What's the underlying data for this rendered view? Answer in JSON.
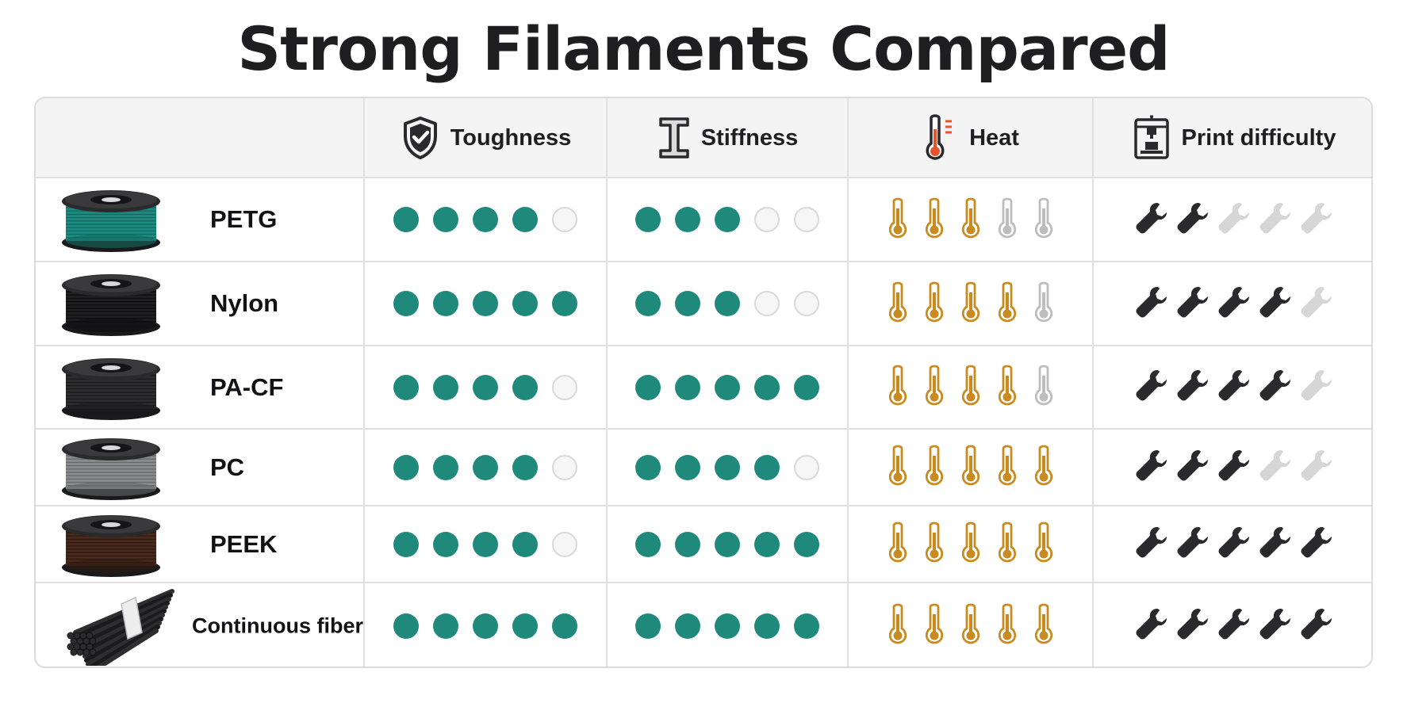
{
  "title": "Strong Filaments Compared",
  "columns": [
    {
      "key": "toughness",
      "label": "Toughness",
      "icon": "shield-check-icon"
    },
    {
      "key": "stiffness",
      "label": "Stiffness",
      "icon": "i-beam-icon"
    },
    {
      "key": "heat",
      "label": "Heat",
      "icon": "thermometer-icon"
    },
    {
      "key": "print_difficulty",
      "label": "Print difficulty",
      "icon": "3d-printer-icon"
    }
  ],
  "scale_max": 5,
  "colors": {
    "rating_on": "#1f8a7c",
    "rating_off": "#f6f6f6",
    "heat_on": "#c98a1f",
    "heat_off": "#bdbdbd",
    "wrench_on": "#2a2a2d",
    "wrench_off": "#d6d6d6"
  },
  "materials": [
    {
      "name": "PETG",
      "icon": "spool-teal-icon",
      "toughness": 4,
      "stiffness": 3,
      "heat": 3,
      "print_difficulty": 2
    },
    {
      "name": "Nylon",
      "icon": "spool-black-icon",
      "toughness": 5,
      "stiffness": 3,
      "heat": 4,
      "print_difficulty": 4
    },
    {
      "name": "PA-CF",
      "icon": "spool-carbon-icon",
      "toughness": 4,
      "stiffness": 5,
      "heat": 4,
      "print_difficulty": 4
    },
    {
      "name": "PC",
      "icon": "spool-gray-icon",
      "toughness": 4,
      "stiffness": 4,
      "heat": 5,
      "print_difficulty": 3
    },
    {
      "name": "PEEK",
      "icon": "spool-brown-icon",
      "toughness": 4,
      "stiffness": 5,
      "heat": 5,
      "print_difficulty": 5
    },
    {
      "name": "Continuous fiber",
      "icon": "fiber-bundle-icon",
      "toughness": 5,
      "stiffness": 5,
      "heat": 5,
      "print_difficulty": 5
    }
  ]
}
